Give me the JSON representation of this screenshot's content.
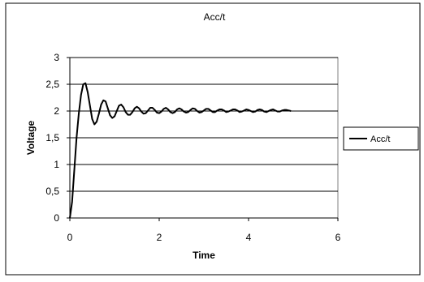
{
  "chart_data": {
    "type": "line",
    "title": "Acc/t",
    "xlabel": "Time",
    "ylabel": "Voltage",
    "xlim": [
      0,
      6
    ],
    "ylim": [
      0,
      3
    ],
    "x_ticks": [
      "0",
      "2",
      "4",
      "6"
    ],
    "y_ticks": [
      "0",
      "0,5",
      "1",
      "1,5",
      "2",
      "2,5",
      "3"
    ],
    "grid": "horizontal",
    "legend": "right",
    "series": [
      {
        "name": "Acc/t",
        "color": "#000000",
        "x": [
          0,
          0.05,
          0.1,
          0.15,
          0.2,
          0.25,
          0.3,
          0.35,
          0.4,
          0.45,
          0.5,
          0.55,
          0.6,
          0.65,
          0.7,
          0.75,
          0.8,
          0.85,
          0.9,
          0.95,
          1.0,
          1.05,
          1.1,
          1.15,
          1.2,
          1.25,
          1.3,
          1.35,
          1.4,
          1.45,
          1.5,
          1.55,
          1.6,
          1.65,
          1.7,
          1.75,
          1.8,
          1.85,
          1.9,
          1.95,
          2.0,
          2.05,
          2.1,
          2.15,
          2.2,
          2.25,
          2.3,
          2.35,
          2.4,
          2.45,
          2.5,
          2.55,
          2.6,
          2.65,
          2.7,
          2.75,
          2.8,
          2.85,
          2.9,
          2.95,
          3.0,
          3.05,
          3.1,
          3.15,
          3.2,
          3.25,
          3.3,
          3.35,
          3.4,
          3.45,
          3.5,
          3.55,
          3.6,
          3.65,
          3.7,
          3.75,
          3.8,
          3.85,
          3.9,
          3.95,
          4.0,
          4.05,
          4.1,
          4.15,
          4.2,
          4.25,
          4.3,
          4.35,
          4.4,
          4.45,
          4.5,
          4.55,
          4.6,
          4.65,
          4.7,
          4.75,
          4.8,
          4.85,
          4.9,
          4.95
        ],
        "y": [
          0,
          0.3,
          0.9,
          1.5,
          1.95,
          2.3,
          2.5,
          2.52,
          2.35,
          2.1,
          1.85,
          1.75,
          1.8,
          1.95,
          2.12,
          2.2,
          2.18,
          2.05,
          1.92,
          1.87,
          1.9,
          2.0,
          2.1,
          2.12,
          2.07,
          1.98,
          1.93,
          1.93,
          1.98,
          2.05,
          2.08,
          2.05,
          1.99,
          1.95,
          1.96,
          2.01,
          2.06,
          2.06,
          2.02,
          1.97,
          1.96,
          1.99,
          2.04,
          2.06,
          2.03,
          1.98,
          1.96,
          1.98,
          2.03,
          2.05,
          2.03,
          1.99,
          1.97,
          1.98,
          2.02,
          2.05,
          2.04,
          2.0,
          1.97,
          1.98,
          2.01,
          2.04,
          2.04,
          2.01,
          1.98,
          1.98,
          2.01,
          2.03,
          2.03,
          2.01,
          1.98,
          1.99,
          2.01,
          2.03,
          2.03,
          2.01,
          1.98,
          1.99,
          2.01,
          2.03,
          2.02,
          2.0,
          1.98,
          1.99,
          2.02,
          2.03,
          2.02,
          1.99,
          1.98,
          2.0,
          2.02,
          2.03,
          2.01,
          1.99,
          1.99,
          2.01,
          2.02,
          2.02,
          2.01,
          2.0
        ]
      }
    ]
  }
}
